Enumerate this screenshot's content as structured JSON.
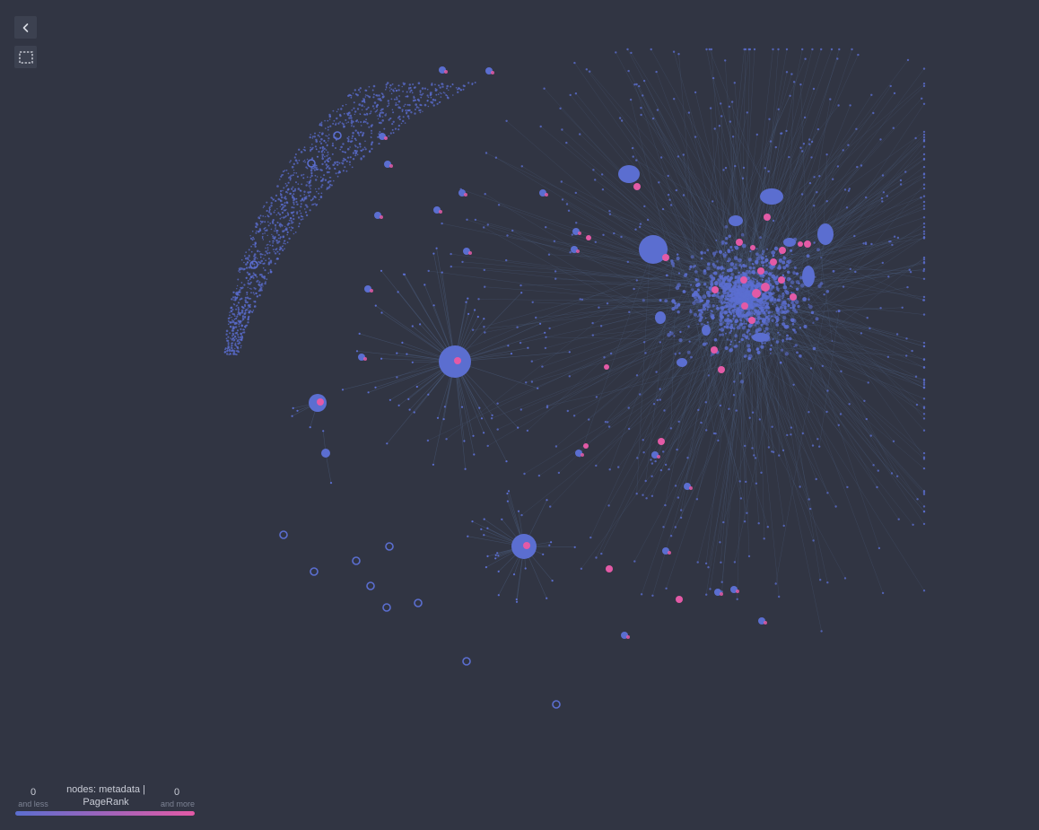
{
  "toolbar": {
    "back_icon": "chevron-left-icon",
    "select_icon": "selection-rectangle-icon"
  },
  "graph": {
    "node_color_low": "#5b6ed0",
    "node_color_high": "#e35aa6",
    "edge_color": "#4a5a7a",
    "background": "#313543"
  },
  "legend": {
    "title": "nodes: metadata | PageRank",
    "min_value": "0",
    "min_label": "and less",
    "max_value": "0",
    "max_label": "and more"
  }
}
